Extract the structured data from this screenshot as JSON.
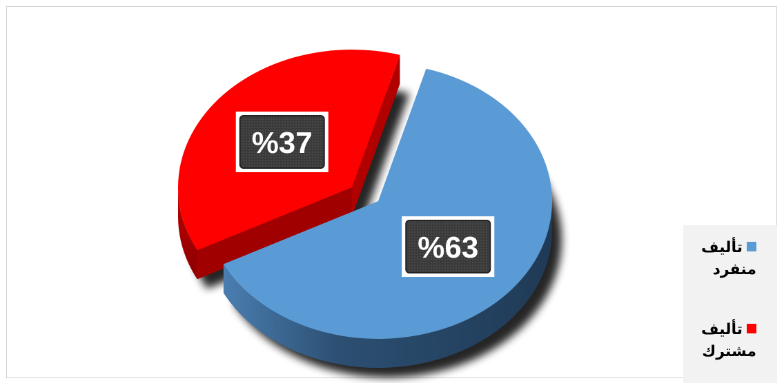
{
  "chart_data": {
    "type": "pie",
    "style": "3d-exploded",
    "slices": [
      {
        "label": "تأليف منفرد",
        "value": 63,
        "value_label": "%63",
        "color": "#5b9bd5"
      },
      {
        "label": "تأليف مشترك",
        "value": 37,
        "value_label": "%37",
        "color": "#ff0000"
      }
    ],
    "legend": {
      "position": "right"
    }
  }
}
